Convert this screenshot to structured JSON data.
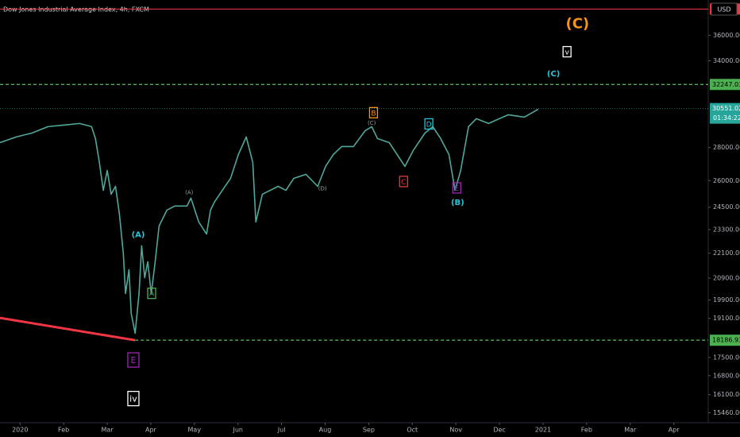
{
  "chart_data": {
    "type": "line",
    "title": "Dow Jones Industrial Average Index, 4h, FXCM",
    "currency": "USD",
    "log_scale": true,
    "grid": false,
    "color": "#4fa89b",
    "xlim": [
      -0.46,
      15.79
    ],
    "xticks": [
      {
        "value": 0,
        "label": "2020"
      },
      {
        "value": 1,
        "label": "Feb"
      },
      {
        "value": 2,
        "label": "Mar"
      },
      {
        "value": 3,
        "label": "Apr"
      },
      {
        "value": 4,
        "label": "May"
      },
      {
        "value": 5,
        "label": "Jun"
      },
      {
        "value": 6,
        "label": "Jul"
      },
      {
        "value": 7,
        "label": "Aug"
      },
      {
        "value": 8,
        "label": "Sep"
      },
      {
        "value": 9,
        "label": "Oct"
      },
      {
        "value": 10,
        "label": "Nov"
      },
      {
        "value": 11,
        "label": "Dec"
      },
      {
        "value": 12,
        "label": "2021"
      },
      {
        "value": 13,
        "label": "Feb"
      },
      {
        "value": 14,
        "label": "Mar"
      },
      {
        "value": 15,
        "label": "Apr"
      }
    ],
    "ylim": [
      15120,
      38960
    ],
    "yticks": [
      {
        "value": 15460,
        "label": "15460.00"
      },
      {
        "value": 16100,
        "label": "16100.00"
      },
      {
        "value": 16800,
        "label": "16800.00"
      },
      {
        "value": 17500,
        "label": "17500.00"
      },
      {
        "value": 19100,
        "label": "19100.00"
      },
      {
        "value": 19900,
        "label": "19900.00"
      },
      {
        "value": 20900,
        "label": "20900.00"
      },
      {
        "value": 22100,
        "label": "22100.00"
      },
      {
        "value": 23300,
        "label": "23300.00"
      },
      {
        "value": 24500,
        "label": "24500.00"
      },
      {
        "value": 26000,
        "label": "26000.00"
      },
      {
        "value": 28000,
        "label": "28000.00"
      },
      {
        "value": 34000,
        "label": "34000.00"
      },
      {
        "value": 36000,
        "label": "36000.00"
      }
    ],
    "x": [
      -0.46,
      -0.09,
      0.27,
      0.64,
      1.0,
      1.37,
      1.64,
      1.73,
      1.82,
      1.91,
      2.0,
      2.09,
      2.19,
      2.28,
      2.37,
      2.42,
      2.5,
      2.55,
      2.64,
      2.73,
      2.79,
      2.86,
      2.93,
      3.01,
      3.1,
      3.19,
      3.37,
      3.55,
      3.83,
      3.92,
      4.1,
      4.28,
      4.37,
      4.46,
      4.64,
      4.83,
      5.01,
      5.19,
      5.34,
      5.41,
      5.56,
      5.74,
      5.92,
      6.1,
      6.28,
      6.56,
      6.83,
      7.01,
      7.19,
      7.38,
      7.65,
      7.92,
      8.07,
      8.2,
      8.47,
      8.65,
      8.83,
      9.02,
      9.29,
      9.47,
      9.65,
      9.84,
      9.98,
      10.11,
      10.29,
      10.47,
      10.75,
      11.2,
      11.57,
      11.89
    ],
    "values": [
      28310,
      28670,
      28920,
      29340,
      29440,
      29550,
      29340,
      28570,
      27080,
      25440,
      26600,
      25220,
      25670,
      24120,
      22070,
      20190,
      21300,
      19310,
      18470,
      20190,
      22470,
      20920,
      21680,
      20190,
      21680,
      23490,
      24340,
      24560,
      24560,
      25000,
      23700,
      23070,
      24340,
      24780,
      25440,
      26130,
      27570,
      28670,
      27080,
      23700,
      25220,
      25440,
      25670,
      25440,
      26130,
      26370,
      25670,
      26840,
      27570,
      28060,
      28060,
      29080,
      29340,
      28570,
      28310,
      27570,
      26840,
      27810,
      28920,
      29340,
      28570,
      27570,
      25440,
      26600,
      29340,
      29870,
      29550,
      30130,
      29970,
      30510
    ],
    "last_price": 30551.02,
    "last_price_color": "#26a69a",
    "countdown": "01:34:22",
    "levels": [
      {
        "value": 32247.03,
        "color": "#4caf50"
      },
      {
        "value": 18186.93,
        "color": "#4caf50",
        "from": 2.64
      }
    ],
    "top_line": {
      "value": 38180,
      "color": "#f23645"
    },
    "trendline": {
      "x": [
        -0.46,
        2.64
      ],
      "values": [
        19120,
        18186.93
      ],
      "color": "#f23645"
    },
    "annotations": [
      {
        "text": "(C)",
        "x": 12.79,
        "y": 36980,
        "color": "#f7931a",
        "style": "large"
      },
      {
        "text": "v",
        "x": 12.55,
        "y": 34700,
        "color": "#ffffff",
        "style": "boxed"
      },
      {
        "text": "(C)",
        "x": 12.24,
        "y": 33070,
        "color": "#26c6da",
        "style": "plain"
      },
      {
        "text": "B",
        "x": 8.11,
        "y": 30270,
        "color": "#f7931a",
        "style": "boxed"
      },
      {
        "text": "(C)",
        "x": 8.07,
        "y": 29630,
        "color": "#9e9e9e",
        "style": "small"
      },
      {
        "text": "D",
        "x": 9.38,
        "y": 29520,
        "color": "#26c6da",
        "style": "boxed"
      },
      {
        "text": "C",
        "x": 8.8,
        "y": 25950,
        "color": "#e53935",
        "style": "boxed"
      },
      {
        "text": "E",
        "x": 10.02,
        "y": 25580,
        "color": "#9c27b0",
        "style": "boxed"
      },
      {
        "text": "(B)",
        "x": 10.04,
        "y": 24790,
        "color": "#26c6da",
        "style": "plain"
      },
      {
        "text": "(D)",
        "x": 6.94,
        "y": 25580,
        "color": "#9e9e9e",
        "style": "small"
      },
      {
        "text": "(A)",
        "x": 3.88,
        "y": 25350,
        "color": "#9e9e9e",
        "style": "small"
      },
      {
        "text": "(A)",
        "x": 2.71,
        "y": 23070,
        "color": "#26c6da",
        "style": "plain"
      },
      {
        "text": "A",
        "x": 3.02,
        "y": 20200,
        "color": "#4caf50",
        "style": "boxed"
      },
      {
        "text": "E",
        "x": 2.6,
        "y": 17400,
        "color": "#9c27b0",
        "style": "boxed-large"
      },
      {
        "text": "iv",
        "x": 2.6,
        "y": 15960,
        "color": "#ffffff",
        "style": "boxed-large"
      }
    ]
  }
}
